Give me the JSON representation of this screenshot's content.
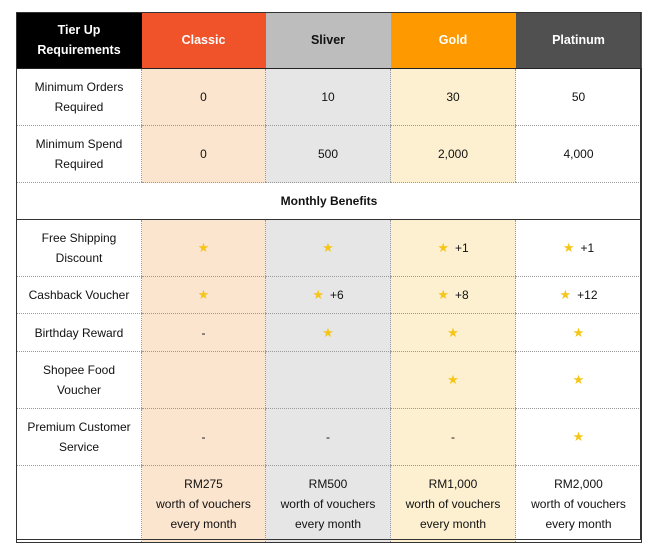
{
  "header": {
    "requirements": "Tier Up Requirements",
    "tiers": [
      "Classic",
      "Sliver",
      "Gold",
      "Platinum"
    ]
  },
  "requirements_rows": [
    {
      "label": "Minimum Orders Required",
      "values": [
        "0",
        "10",
        "30",
        "50"
      ]
    },
    {
      "label": "Minimum Spend Required",
      "values": [
        "0",
        "500",
        "2,000",
        "4,000"
      ]
    }
  ],
  "section_title": "Monthly Benefits",
  "benefits": {
    "free_shipping": {
      "label": "Free Shipping Discount",
      "extras": [
        "",
        "",
        "+1",
        "+1"
      ]
    },
    "cashback": {
      "label": "Cashback Voucher",
      "extras": [
        "",
        "+6",
        "+8",
        "+12"
      ]
    },
    "birthday": {
      "label": "Birthday Reward",
      "dash": "-"
    },
    "food": {
      "label": "Shopee Food Voucher"
    },
    "premium": {
      "label": "Premium Customer Service",
      "dash": "-"
    }
  },
  "vouchers": [
    {
      "amount": "RM275",
      "line2": "worth of vouchers",
      "line3": "every month"
    },
    {
      "amount": "RM500",
      "line2": "worth of vouchers",
      "line3": "every month"
    },
    {
      "amount": "RM1,000",
      "line2": "worth of vouchers",
      "line3": "every month"
    },
    {
      "amount": "RM2,000",
      "line2": "worth of vouchers",
      "line3": "every month"
    }
  ],
  "icons": {
    "star": "star-icon"
  },
  "colors": {
    "classic": "#f0522a",
    "silver": "#bdbdbd",
    "gold": "#ff9900",
    "platinum": "#505050",
    "star": "#f5c518"
  }
}
